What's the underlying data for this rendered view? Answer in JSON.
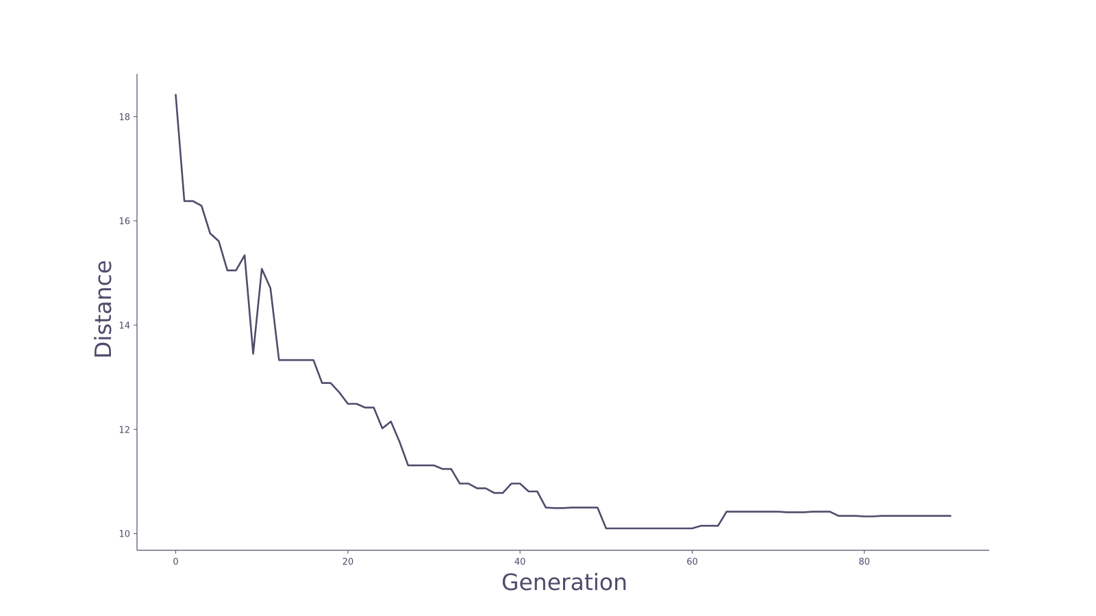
{
  "colors": {
    "line": "#4f4b6b",
    "axis": "#4f4b6b",
    "text": "#4f4b6b",
    "background": "#ffffff"
  },
  "chart_data": {
    "type": "line",
    "title": "",
    "xlabel": "Generation",
    "ylabel": "Distance",
    "xlim": [
      -4.5,
      94.5
    ],
    "ylim": [
      9.68,
      18.82
    ],
    "xticks": [
      0,
      20,
      40,
      60,
      80
    ],
    "yticks": [
      10,
      12,
      14,
      16,
      18
    ],
    "xtick_labels": [
      "0",
      "20",
      "40",
      "60",
      "80"
    ],
    "ytick_labels": [
      "10",
      "12",
      "14",
      "16",
      "18"
    ],
    "grid": false,
    "legend": "none",
    "series": [
      {
        "x": [
          0,
          1,
          2,
          3,
          4,
          5,
          6,
          7,
          8,
          9,
          10,
          11,
          12,
          13,
          14,
          15,
          16,
          17,
          18,
          19,
          20,
          21,
          22,
          23,
          24,
          25,
          26,
          27,
          28,
          29,
          30,
          31,
          32,
          33,
          34,
          35,
          36,
          37,
          38,
          39,
          40,
          41,
          42,
          43,
          44,
          45,
          46,
          47,
          48,
          49,
          50,
          51,
          52,
          53,
          54,
          55,
          56,
          57,
          58,
          59,
          60,
          61,
          62,
          63,
          64,
          65,
          66,
          67,
          68,
          69,
          70,
          71,
          72,
          73,
          74,
          75,
          76,
          77,
          78,
          79,
          80,
          81,
          82,
          83,
          84,
          85,
          86,
          87,
          88,
          89,
          90
        ],
        "y": [
          18.42,
          16.38,
          16.38,
          16.29,
          15.76,
          15.61,
          15.05,
          15.05,
          15.34,
          13.45,
          15.08,
          14.71,
          13.33,
          13.33,
          13.33,
          13.33,
          13.33,
          12.89,
          12.89,
          12.71,
          12.49,
          12.49,
          12.42,
          12.42,
          12.02,
          12.15,
          11.76,
          11.31,
          11.31,
          11.31,
          11.31,
          11.24,
          11.24,
          10.96,
          10.96,
          10.87,
          10.87,
          10.78,
          10.78,
          10.96,
          10.96,
          10.81,
          10.81,
          10.5,
          10.49,
          10.49,
          10.5,
          10.5,
          10.5,
          10.5,
          10.1,
          10.1,
          10.1,
          10.1,
          10.1,
          10.1,
          10.1,
          10.1,
          10.1,
          10.1,
          10.1,
          10.15,
          10.15,
          10.15,
          10.42,
          10.42,
          10.42,
          10.42,
          10.42,
          10.42,
          10.42,
          10.41,
          10.41,
          10.41,
          10.42,
          10.42,
          10.42,
          10.34,
          10.34,
          10.34,
          10.33,
          10.33,
          10.34,
          10.34,
          10.34,
          10.34,
          10.34,
          10.34,
          10.34,
          10.34,
          10.34
        ]
      }
    ]
  }
}
